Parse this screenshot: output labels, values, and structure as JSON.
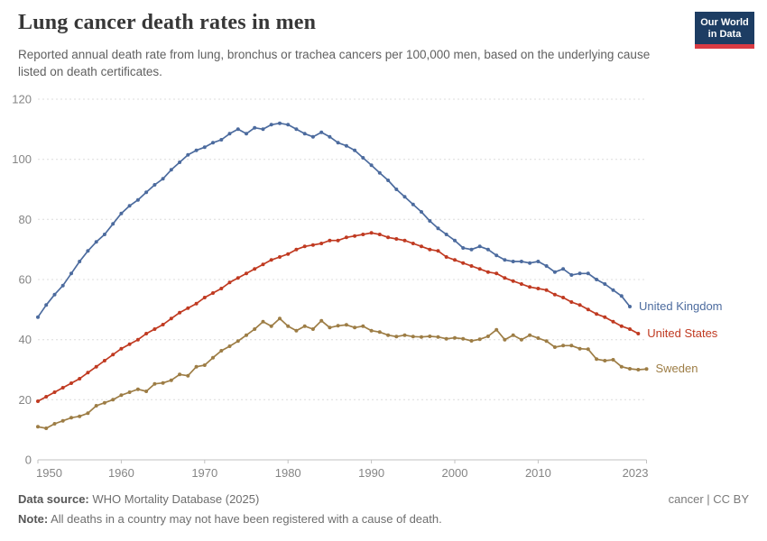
{
  "header": {
    "title": "Lung cancer death rates in men",
    "subtitle": "Reported annual death rate from lung, bronchus or trachea cancers per 100,000 men, based on the underlying cause listed on death certificates.",
    "logo_line1": "Our World",
    "logo_line2": "in Data",
    "logo_bg_color": "#1D3D63",
    "logo_bar_color": "#D93B43"
  },
  "footer": {
    "datasource_label": "Data source:",
    "datasource_value": " WHO Mortality Database (2025)",
    "note_label": "Note:",
    "note_value": " All deaths in a country may not have been registered with a cause of death.",
    "license": "cancer | CC BY"
  },
  "chart_data": {
    "type": "line",
    "title": "Lung cancer death rates in men",
    "xlabel": "",
    "ylabel": "",
    "grid": true,
    "legend_position": "right-end-of-line-labels",
    "x_axis": {
      "range": [
        1950,
        2023
      ],
      "ticks": [
        1950,
        1960,
        1970,
        1980,
        1990,
        2000,
        2010,
        2023
      ]
    },
    "y_axis": {
      "range": [
        0,
        120
      ],
      "ticks": [
        0,
        20,
        40,
        60,
        80,
        100,
        120
      ]
    },
    "series": [
      {
        "name": "United Kingdom",
        "slug": "united-kingdom",
        "color": "#4C6B9E",
        "start_year": 1950,
        "end_year": 2021,
        "values": [
          47.5,
          51.5,
          55,
          58,
          62,
          66,
          69.5,
          72.5,
          75,
          78.5,
          82,
          84.5,
          86.5,
          89,
          91.5,
          93.5,
          96.5,
          99,
          101.5,
          103,
          104,
          105.5,
          106.5,
          108.5,
          110,
          108.5,
          110.5,
          110,
          111.5,
          112,
          111.5,
          110,
          108.5,
          107.5,
          109,
          107.5,
          105.5,
          104.5,
          103,
          100.5,
          98,
          95.5,
          93,
          90,
          87.5,
          85,
          82.5,
          79.5,
          77,
          75,
          73,
          70.5,
          70,
          71,
          70,
          68,
          66.5,
          66,
          66,
          65.5,
          66,
          64.5,
          62.5,
          63.5,
          61.5,
          62,
          62,
          60,
          58.5,
          56.5,
          54.5,
          51
        ]
      },
      {
        "name": "United States",
        "slug": "united-states",
        "color": "#C03A21",
        "start_year": 1950,
        "end_year": 2022,
        "values": [
          19.5,
          21,
          22.5,
          24,
          25.5,
          27,
          29,
          31,
          33,
          35,
          37,
          38.5,
          40,
          42,
          43.5,
          45,
          47,
          49,
          50.5,
          52,
          54,
          55.5,
          57,
          59,
          60.5,
          62,
          63.5,
          65,
          66.5,
          67.5,
          68.5,
          70,
          71,
          71.5,
          72,
          73,
          73,
          74,
          74.5,
          75,
          75.5,
          75,
          74,
          73.5,
          73,
          72,
          71,
          70,
          69.5,
          67.5,
          66.5,
          65.5,
          64.5,
          63.5,
          62.5,
          62,
          60.5,
          59.5,
          58.5,
          57.5,
          57,
          56.5,
          55,
          54,
          52.5,
          51.5,
          50,
          48.5,
          47.5,
          46,
          44.5,
          43.5,
          42
        ]
      },
      {
        "name": "Sweden",
        "slug": "sweden",
        "color": "#9D7D45",
        "start_year": 1950,
        "end_year": 2023,
        "values": [
          11,
          10.5,
          12,
          13,
          14,
          14.5,
          15.5,
          18,
          19,
          20,
          21.5,
          22.5,
          23.5,
          22.8,
          25.3,
          25.6,
          26.5,
          28.4,
          28,
          31,
          31.5,
          34,
          36.3,
          37.8,
          39.5,
          41.5,
          43.5,
          46,
          44.5,
          47,
          44.5,
          43,
          44.5,
          43.5,
          46.3,
          44,
          44.6,
          44.9,
          44,
          44.5,
          43,
          42.5,
          41.5,
          41,
          41.5,
          41,
          40.9,
          41.1,
          40.9,
          40.3,
          40.6,
          40.3,
          39.6,
          40.1,
          41.1,
          43.3,
          40,
          41.5,
          40,
          41.5,
          40.5,
          39.5,
          37.5,
          38,
          38,
          37,
          36.8,
          33.5,
          33,
          33.3,
          31,
          30.3,
          30,
          30.2
        ]
      }
    ]
  }
}
